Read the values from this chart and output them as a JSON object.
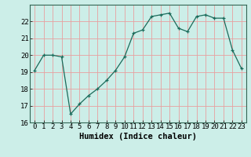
{
  "x": [
    0,
    1,
    2,
    3,
    4,
    5,
    6,
    7,
    8,
    9,
    10,
    11,
    12,
    13,
    14,
    15,
    16,
    17,
    18,
    19,
    20,
    21,
    22,
    23
  ],
  "y": [
    19.1,
    20.0,
    20.0,
    19.9,
    16.5,
    17.1,
    17.6,
    18.0,
    18.5,
    19.1,
    19.9,
    21.3,
    21.5,
    22.3,
    22.4,
    22.5,
    21.6,
    21.4,
    22.3,
    22.4,
    22.2,
    22.2,
    20.3,
    19.2
  ],
  "xlabel": "Humidex (Indice chaleur)",
  "ylim": [
    16,
    23
  ],
  "xlim": [
    -0.5,
    23.5
  ],
  "yticks": [
    16,
    17,
    18,
    19,
    20,
    21,
    22
  ],
  "line_color": "#1a6b5a",
  "marker": "+",
  "bg_color": "#cceee8",
  "grid_color": "#e8a0a0",
  "tick_fontsize": 6.5,
  "label_fontsize": 7.5
}
